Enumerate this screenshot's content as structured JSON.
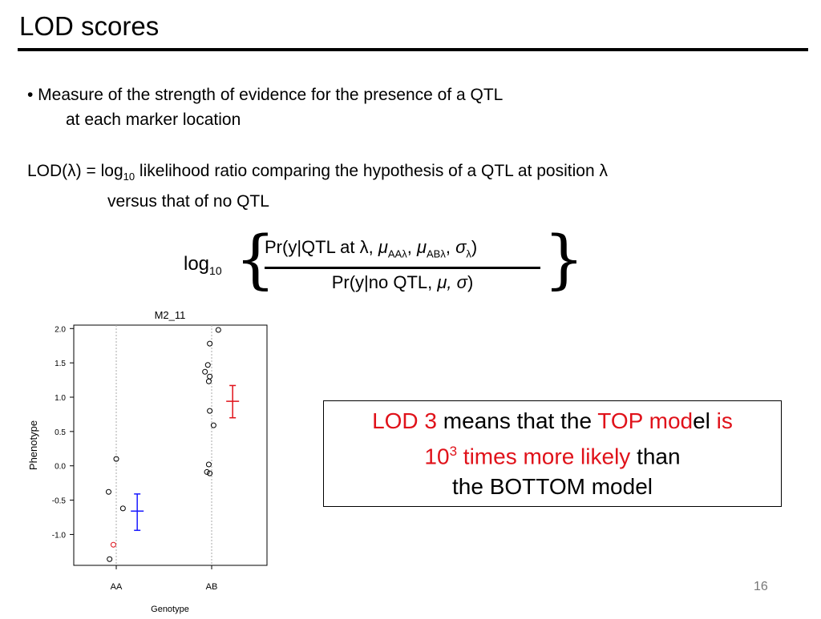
{
  "slide": {
    "title": "LOD scores",
    "bullet_line1": "• Measure of the strength of evidence for the presence of a QTL",
    "bullet_line2": "at each marker location",
    "lod_def_prefix": "LOD(λ) = log",
    "lod_def_sub": "10",
    "lod_def_rest": " likelihood ratio comparing the hypothesis of a QTL at position λ",
    "lod_def_line2": "versus that of no QTL",
    "page_number": "16"
  },
  "formula": {
    "log_label": "log",
    "log_sub": "10",
    "left_brace": "{",
    "right_brace": "}",
    "num_text1": "Pr(y|QTL at λ, ",
    "num_mu": "μ",
    "num_sub_aa": "AAλ",
    "num_sep": ", ",
    "num_sub_ab": "ABλ",
    "num_sigma": "σ",
    "num_sub_lambda": "λ",
    "num_close": ")",
    "den_text": "Pr(y|no QTL, ",
    "den_mu": "μ",
    "den_comma": ", ",
    "den_sigma": "σ",
    "den_close": ")"
  },
  "callout": {
    "part1": "LOD 3",
    "part2": " means that the ",
    "part3": "TOP mod",
    "part4": "el ",
    "part5": "is",
    "part6": "10",
    "part6_sup": "3",
    "part7": " times more likely",
    "part8": " than",
    "part9": "the BOTTOM model"
  },
  "colors": {
    "red_highlight": "#e0121a",
    "blue_interval": "#1a1aff",
    "red_interval": "#e0121a"
  },
  "chart_data": {
    "type": "scatter",
    "title": "M2_11",
    "xlabel": "Genotype",
    "ylabel": "Phenotype",
    "categories": [
      "AA",
      "AB"
    ],
    "ylim": [
      -1.45,
      2.05
    ],
    "yticks": [
      "2.0",
      "1.5",
      "1.0",
      "0.5",
      "0.0",
      "-0.5",
      "-1.0"
    ],
    "ytick_values": [
      2.0,
      1.5,
      1.0,
      0.5,
      0.0,
      -0.5,
      -1.0
    ],
    "grid": "vertical dotted lines at categories",
    "points": [
      {
        "category": "AA",
        "jitter": 0.0,
        "y": 0.1,
        "color": "#000"
      },
      {
        "category": "AA",
        "jitter": -0.08,
        "y": -0.38,
        "color": "#000"
      },
      {
        "category": "AA",
        "jitter": 0.07,
        "y": -0.62,
        "color": "#000"
      },
      {
        "category": "AA",
        "jitter": -0.03,
        "y": -1.15,
        "color": "#e0121a"
      },
      {
        "category": "AA",
        "jitter": -0.07,
        "y": -1.36,
        "color": "#000"
      },
      {
        "category": "AB",
        "jitter": 0.07,
        "y": 1.98,
        "color": "#000"
      },
      {
        "category": "AB",
        "jitter": -0.02,
        "y": 1.78,
        "color": "#000"
      },
      {
        "category": "AB",
        "jitter": -0.04,
        "y": 1.47,
        "color": "#000"
      },
      {
        "category": "AB",
        "jitter": -0.07,
        "y": 1.37,
        "color": "#000"
      },
      {
        "category": "AB",
        "jitter": -0.02,
        "y": 1.3,
        "color": "#000"
      },
      {
        "category": "AB",
        "jitter": -0.03,
        "y": 1.23,
        "color": "#000"
      },
      {
        "category": "AB",
        "jitter": -0.02,
        "y": 0.8,
        "color": "#000"
      },
      {
        "category": "AB",
        "jitter": 0.02,
        "y": 0.59,
        "color": "#000"
      },
      {
        "category": "AB",
        "jitter": -0.03,
        "y": 0.02,
        "color": "#000"
      },
      {
        "category": "AB",
        "jitter": -0.05,
        "y": -0.09,
        "color": "#000"
      },
      {
        "category": "AB",
        "jitter": -0.02,
        "y": -0.11,
        "color": "#000"
      }
    ],
    "intervals": [
      {
        "category": "AA",
        "offset": 0.22,
        "mean": -0.66,
        "low": -0.94,
        "high": -0.41,
        "color": "#1a1aff"
      },
      {
        "category": "AB",
        "offset": 0.22,
        "mean": 0.94,
        "low": 0.7,
        "high": 1.17,
        "color": "#e0121a"
      }
    ]
  }
}
